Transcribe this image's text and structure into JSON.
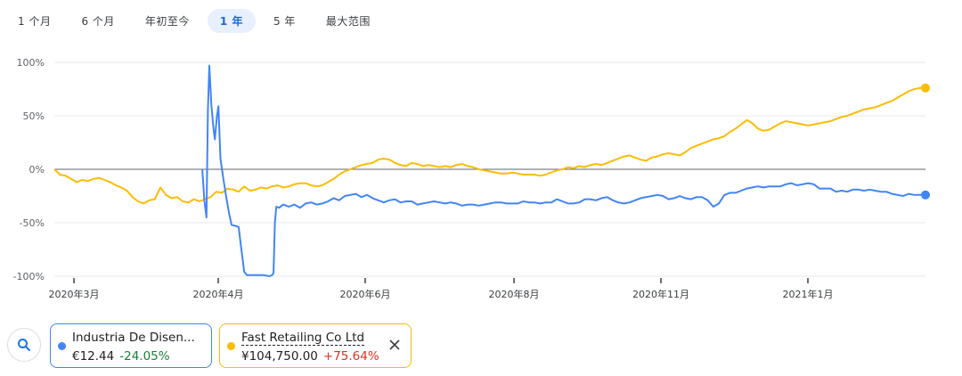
{
  "range_tabs": [
    "1 个月",
    "6 个月",
    "年初至今",
    "1 年",
    "5 年",
    "最大范围"
  ],
  "active_tab": "1 年",
  "colors": {
    "series_1": "#4285f4",
    "series_2": "#fbbc04",
    "positive": "#d93025",
    "negative": "#188038",
    "zero_line": "#5f6368"
  },
  "chart_data": {
    "type": "line",
    "ylim": [
      -100,
      100
    ],
    "y_tick_labels": [
      "100%",
      "50%",
      "0%",
      "-50%",
      "-100%"
    ],
    "x_tick_labels": [
      "2020年3月",
      "2020年4月",
      "2020年6月",
      "2020年8月",
      "2020年11月",
      "2021年1月"
    ],
    "grid": true,
    "series": [
      {
        "name": "Industria De Disen...",
        "color": "#4285f4",
        "points": [
          [
            0.106,
            0
          ],
          [
            0.1065,
            -10
          ],
          [
            0.1075,
            -30
          ],
          [
            0.109,
            -45
          ],
          [
            0.11,
            55
          ],
          [
            0.111,
            97
          ],
          [
            0.1125,
            60
          ],
          [
            0.114,
            38
          ],
          [
            0.115,
            28
          ],
          [
            0.1165,
            50
          ],
          [
            0.1175,
            59
          ],
          [
            0.119,
            10
          ],
          [
            0.121,
            -8
          ],
          [
            0.123,
            -25
          ],
          [
            0.125,
            -40
          ],
          [
            0.127,
            -52
          ],
          [
            0.13,
            -53
          ],
          [
            0.132,
            -54
          ],
          [
            0.134,
            -75
          ],
          [
            0.136,
            -96
          ],
          [
            0.138,
            -99
          ],
          [
            0.142,
            -99
          ],
          [
            0.146,
            -99
          ],
          [
            0.15,
            -99
          ],
          [
            0.154,
            -100
          ],
          [
            0.156,
            -99
          ],
          [
            0.157,
            -97
          ],
          [
            0.158,
            -50
          ],
          [
            0.159,
            -35
          ],
          [
            0.161,
            -36
          ],
          [
            0.164,
            -33
          ],
          [
            0.168,
            -35
          ],
          [
            0.172,
            -33
          ],
          [
            0.176,
            -36
          ],
          [
            0.18,
            -32
          ],
          [
            0.184,
            -31
          ],
          [
            0.188,
            -33
          ],
          [
            0.192,
            -32
          ],
          [
            0.196,
            -30
          ],
          [
            0.2,
            -27
          ],
          [
            0.204,
            -29
          ],
          [
            0.208,
            -25
          ],
          [
            0.212,
            -24
          ],
          [
            0.216,
            -23
          ],
          [
            0.22,
            -26
          ],
          [
            0.224,
            -24
          ],
          [
            0.228,
            -27
          ],
          [
            0.232,
            -29
          ],
          [
            0.236,
            -31
          ],
          [
            0.24,
            -29
          ],
          [
            0.244,
            -28
          ],
          [
            0.248,
            -31
          ],
          [
            0.252,
            -30
          ],
          [
            0.256,
            -30
          ],
          [
            0.26,
            -33
          ],
          [
            0.264,
            -32
          ],
          [
            0.268,
            -31
          ],
          [
            0.272,
            -30
          ],
          [
            0.276,
            -31
          ],
          [
            0.28,
            -32
          ],
          [
            0.284,
            -31
          ],
          [
            0.288,
            -32
          ],
          [
            0.292,
            -34
          ],
          [
            0.296,
            -33
          ],
          [
            0.3,
            -33
          ],
          [
            0.304,
            -34
          ],
          [
            0.308,
            -33
          ],
          [
            0.312,
            -32
          ],
          [
            0.316,
            -31
          ],
          [
            0.32,
            -31
          ],
          [
            0.324,
            -32
          ],
          [
            0.328,
            -32
          ],
          [
            0.332,
            -32
          ],
          [
            0.336,
            -30
          ],
          [
            0.34,
            -31
          ],
          [
            0.344,
            -31
          ],
          [
            0.348,
            -32
          ],
          [
            0.352,
            -31
          ],
          [
            0.356,
            -31
          ],
          [
            0.36,
            -28
          ],
          [
            0.364,
            -30
          ],
          [
            0.368,
            -32
          ],
          [
            0.372,
            -32
          ],
          [
            0.376,
            -31
          ],
          [
            0.38,
            -28
          ],
          [
            0.384,
            -28
          ],
          [
            0.388,
            -29
          ],
          [
            0.392,
            -27
          ],
          [
            0.396,
            -26
          ],
          [
            0.4,
            -29
          ],
          [
            0.404,
            -31
          ],
          [
            0.408,
            -32
          ],
          [
            0.412,
            -31
          ],
          [
            0.416,
            -29
          ],
          [
            0.42,
            -27
          ],
          [
            0.424,
            -26
          ],
          [
            0.428,
            -25
          ],
          [
            0.432,
            -24
          ],
          [
            0.436,
            -25
          ],
          [
            0.44,
            -28
          ],
          [
            0.444,
            -27
          ],
          [
            0.448,
            -25
          ],
          [
            0.452,
            -27
          ],
          [
            0.456,
            -28
          ],
          [
            0.46,
            -26
          ],
          [
            0.464,
            -26
          ],
          [
            0.468,
            -29
          ],
          [
            0.472,
            -35
          ],
          [
            0.476,
            -32
          ],
          [
            0.48,
            -24
          ],
          [
            0.484,
            -22
          ],
          [
            0.488,
            -22
          ],
          [
            0.492,
            -20
          ],
          [
            0.496,
            -18
          ],
          [
            0.5,
            -17
          ],
          [
            0.504,
            -16
          ],
          [
            0.508,
            -17
          ],
          [
            0.512,
            -16
          ],
          [
            0.516,
            -16
          ],
          [
            0.52,
            -16
          ],
          [
            0.524,
            -14
          ],
          [
            0.528,
            -13
          ],
          [
            0.532,
            -15
          ],
          [
            0.536,
            -14
          ],
          [
            0.54,
            -13
          ],
          [
            0.544,
            -14
          ],
          [
            0.548,
            -18
          ],
          [
            0.552,
            -18
          ],
          [
            0.556,
            -18
          ],
          [
            0.56,
            -21
          ],
          [
            0.564,
            -20
          ],
          [
            0.568,
            -21
          ],
          [
            0.572,
            -19
          ],
          [
            0.576,
            -19
          ],
          [
            0.58,
            -20
          ],
          [
            0.584,
            -19
          ],
          [
            0.588,
            -20
          ],
          [
            0.592,
            -21
          ],
          [
            0.596,
            -21
          ],
          [
            0.6,
            -23
          ],
          [
            0.604,
            -24
          ],
          [
            0.608,
            -25
          ],
          [
            0.612,
            -23
          ],
          [
            0.616,
            -24
          ],
          [
            0.62,
            -24
          ],
          [
            0.624,
            -24
          ]
        ]
      },
      {
        "name": "Fast Retailing Co Ltd",
        "color": "#fbbc04",
        "points": [
          [
            0.0,
            0
          ],
          [
            0.004,
            -5
          ],
          [
            0.008,
            -6
          ],
          [
            0.012,
            -9
          ],
          [
            0.016,
            -12
          ],
          [
            0.02,
            -10
          ],
          [
            0.024,
            -11
          ],
          [
            0.028,
            -9
          ],
          [
            0.032,
            -8
          ],
          [
            0.036,
            -10
          ],
          [
            0.04,
            -12
          ],
          [
            0.044,
            -15
          ],
          [
            0.048,
            -17
          ],
          [
            0.052,
            -20
          ],
          [
            0.056,
            -26
          ],
          [
            0.06,
            -30
          ],
          [
            0.064,
            -32
          ],
          [
            0.068,
            -29
          ],
          [
            0.072,
            -28
          ],
          [
            0.076,
            -17
          ],
          [
            0.08,
            -24
          ],
          [
            0.084,
            -27
          ],
          [
            0.088,
            -26
          ],
          [
            0.092,
            -30
          ],
          [
            0.096,
            -31
          ],
          [
            0.1,
            -28
          ],
          [
            0.104,
            -30
          ],
          [
            0.108,
            -28
          ],
          [
            0.112,
            -26
          ],
          [
            0.116,
            -21
          ],
          [
            0.12,
            -22
          ],
          [
            0.124,
            -18
          ],
          [
            0.128,
            -19
          ],
          [
            0.132,
            -21
          ],
          [
            0.136,
            -16
          ],
          [
            0.14,
            -20
          ],
          [
            0.144,
            -19
          ],
          [
            0.148,
            -17
          ],
          [
            0.152,
            -18
          ],
          [
            0.156,
            -16
          ],
          [
            0.16,
            -15
          ],
          [
            0.164,
            -17
          ],
          [
            0.168,
            -16
          ],
          [
            0.172,
            -14
          ],
          [
            0.176,
            -13
          ],
          [
            0.18,
            -13
          ],
          [
            0.184,
            -15
          ],
          [
            0.188,
            -16
          ],
          [
            0.192,
            -15
          ],
          [
            0.196,
            -12
          ],
          [
            0.2,
            -9
          ],
          [
            0.204,
            -5
          ],
          [
            0.208,
            -2
          ],
          [
            0.212,
            0
          ],
          [
            0.216,
            2
          ],
          [
            0.22,
            4
          ],
          [
            0.224,
            5
          ],
          [
            0.228,
            6
          ],
          [
            0.232,
            9
          ],
          [
            0.236,
            10
          ],
          [
            0.24,
            9
          ],
          [
            0.244,
            6
          ],
          [
            0.248,
            4
          ],
          [
            0.252,
            3
          ],
          [
            0.256,
            6
          ],
          [
            0.26,
            5
          ],
          [
            0.264,
            3
          ],
          [
            0.268,
            4
          ],
          [
            0.272,
            3
          ],
          [
            0.276,
            2
          ],
          [
            0.28,
            3
          ],
          [
            0.284,
            2
          ],
          [
            0.288,
            4
          ],
          [
            0.292,
            5
          ],
          [
            0.296,
            3
          ],
          [
            0.3,
            2
          ],
          [
            0.304,
            0
          ],
          [
            0.308,
            -1
          ],
          [
            0.312,
            -2
          ],
          [
            0.316,
            -3
          ],
          [
            0.32,
            -4
          ],
          [
            0.324,
            -4
          ],
          [
            0.328,
            -3
          ],
          [
            0.332,
            -4
          ],
          [
            0.336,
            -5
          ],
          [
            0.34,
            -5
          ],
          [
            0.344,
            -5
          ],
          [
            0.348,
            -6
          ],
          [
            0.352,
            -5
          ],
          [
            0.356,
            -3
          ],
          [
            0.36,
            -1
          ],
          [
            0.364,
            0
          ],
          [
            0.368,
            2
          ],
          [
            0.372,
            1
          ],
          [
            0.376,
            3
          ],
          [
            0.38,
            2
          ],
          [
            0.384,
            4
          ],
          [
            0.388,
            5
          ],
          [
            0.392,
            4
          ],
          [
            0.396,
            6
          ],
          [
            0.4,
            8
          ],
          [
            0.404,
            10
          ],
          [
            0.408,
            12
          ],
          [
            0.412,
            13
          ],
          [
            0.416,
            11
          ],
          [
            0.42,
            9
          ],
          [
            0.424,
            8
          ],
          [
            0.428,
            11
          ],
          [
            0.432,
            12
          ],
          [
            0.436,
            14
          ],
          [
            0.44,
            15
          ],
          [
            0.444,
            14
          ],
          [
            0.448,
            13
          ],
          [
            0.452,
            16
          ],
          [
            0.456,
            20
          ],
          [
            0.46,
            22
          ],
          [
            0.464,
            24
          ],
          [
            0.468,
            26
          ],
          [
            0.472,
            28
          ],
          [
            0.476,
            29
          ],
          [
            0.48,
            31
          ],
          [
            0.484,
            35
          ],
          [
            0.488,
            38
          ],
          [
            0.492,
            42
          ],
          [
            0.496,
            46
          ],
          [
            0.5,
            43
          ],
          [
            0.504,
            38
          ],
          [
            0.508,
            36
          ],
          [
            0.512,
            37
          ],
          [
            0.516,
            40
          ],
          [
            0.52,
            43
          ],
          [
            0.524,
            45
          ],
          [
            0.528,
            44
          ],
          [
            0.532,
            43
          ],
          [
            0.536,
            42
          ],
          [
            0.54,
            41
          ],
          [
            0.544,
            42
          ],
          [
            0.548,
            43
          ],
          [
            0.552,
            44
          ],
          [
            0.556,
            45
          ],
          [
            0.56,
            47
          ],
          [
            0.564,
            49
          ],
          [
            0.568,
            50
          ],
          [
            0.572,
            52
          ],
          [
            0.576,
            54
          ],
          [
            0.58,
            56
          ],
          [
            0.584,
            57
          ],
          [
            0.588,
            58
          ],
          [
            0.592,
            60
          ],
          [
            0.596,
            62
          ],
          [
            0.6,
            64
          ],
          [
            0.604,
            67
          ],
          [
            0.608,
            70
          ],
          [
            0.612,
            73
          ],
          [
            0.616,
            75
          ],
          [
            0.62,
            76
          ],
          [
            0.624,
            76
          ]
        ]
      }
    ]
  },
  "legend_chips": [
    {
      "name": "Industria De Disen...",
      "price": "€12.44",
      "change": "-24.05%",
      "dot_color": "#4285f4",
      "border_color": "#4285f4",
      "change_color": "#188038"
    },
    {
      "name": "Fast Retailing Co Ltd",
      "price": "¥104,750.00",
      "change": "+75.64%",
      "dot_color": "#fbbc04",
      "border_color": "#fbbc04",
      "change_color": "#d93025"
    }
  ],
  "icons": {
    "search": "search-icon",
    "close": "close-icon"
  }
}
